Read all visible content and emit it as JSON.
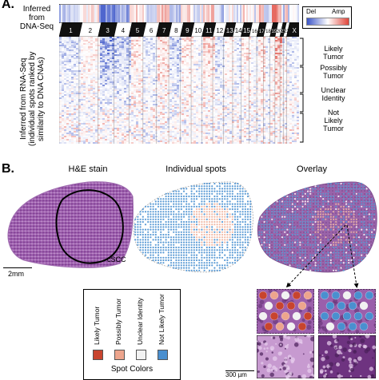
{
  "panel_a": {
    "letter": "A.",
    "dna_label_1": "Inferred",
    "dna_label_2": "from",
    "dna_label_3": "DNA-Seq",
    "rna_label_1": "Inferred from RNA-Seq",
    "rna_label_2": "(individual spots ranked by",
    "rna_label_3": "similarity to DNA CNAs)",
    "colorbar_del": "Del",
    "colorbar_amp": "Amp",
    "chromosomes": [
      "1",
      "2",
      "3",
      "4",
      "5",
      "6",
      "7",
      "8",
      "9",
      "10",
      "11",
      "12",
      "13",
      "14",
      "15",
      "16",
      "17",
      "18",
      "19",
      "20",
      "21",
      "22",
      "X"
    ],
    "groups": [
      {
        "line1": "Likely",
        "line2": "Tumor"
      },
      {
        "line1": "Possibly",
        "line2": "Tumor"
      },
      {
        "line1": "Unclear",
        "line2": "Identity"
      },
      {
        "line1": "Not",
        "line2": "Likely",
        "line3": "Tumor"
      }
    ],
    "colors": {
      "del": "#3b55c8",
      "amp": "#e0453a",
      "neutral": "#ffffff"
    }
  },
  "panel_b": {
    "letter": "B.",
    "titles": [
      "H&E stain",
      "Individual spots",
      "Overlay"
    ],
    "cscc_label": "cSCC",
    "scale_label": "2mm",
    "scale_label_small": "300 µm",
    "legend": {
      "title": "Spot Colors",
      "items": [
        {
          "label": "Likely Tumor",
          "color": "#c8442e"
        },
        {
          "label": "Possibly Tumor",
          "color": "#eda58d"
        },
        {
          "label": "Unclear Identity",
          "color": "#f2f2f2"
        },
        {
          "label": "Not Likely Tumor",
          "color": "#4a8fcf"
        }
      ]
    },
    "colors": {
      "tissue": "#8a4a9a",
      "tissue_light": "#c79ad0",
      "spot_blue": "#5b9bd5",
      "spot_pink": "#f0b9a6"
    }
  }
}
